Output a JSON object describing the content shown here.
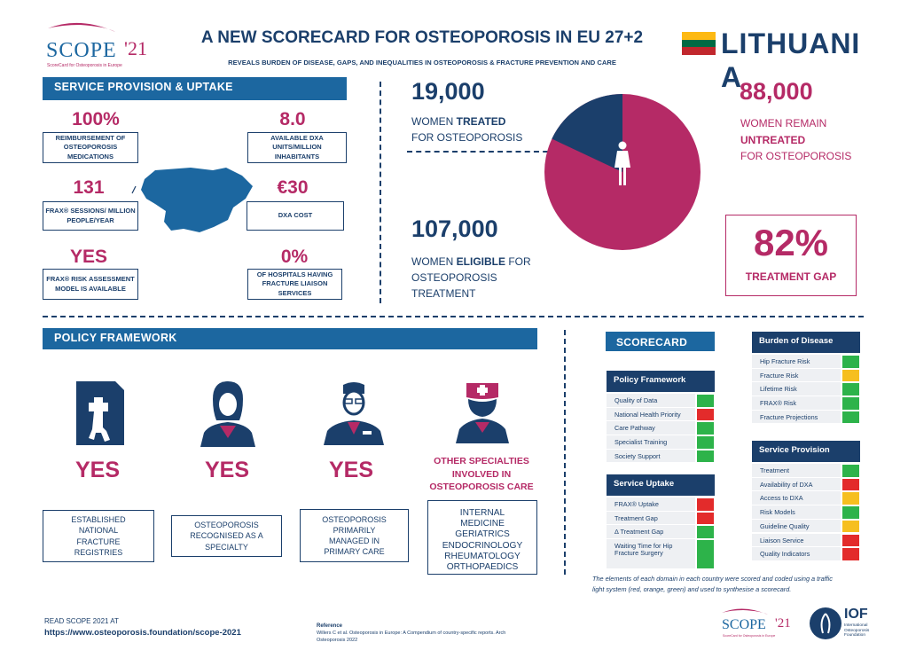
{
  "header": {
    "logo_text": "SCOPE",
    "logo_year": "'21",
    "logo_sub": "ScoreCard for Osteoporosis in Europe",
    "title": "A NEW SCORECARD FOR OSTEOPOROSIS IN EU 27+2",
    "subtitle": "REVEALS BURDEN OF DISEASE, GAPS, AND INEQUALITIES IN OSTEOPOROSIS & FRACTURE PREVENTION AND CARE",
    "country": "LITHUANIA"
  },
  "colors": {
    "navy": "#1b3f6b",
    "magenta": "#b52a66",
    "banner_blue": "#1c67a0",
    "green": "#2db34a",
    "red": "#e32b2b",
    "orange": "#f6bf1f"
  },
  "service": {
    "banner": "SERVICE PROVISION & UPTAKE",
    "items": [
      {
        "value": "100%",
        "label": "REIMBURSEMENT  OF OSTEOPOROSIS MEDICATIONS"
      },
      {
        "value": "8.0",
        "label": "AVAILABLE DXA UNITS/MILLION INHABITANTS"
      },
      {
        "value": "131",
        "label": "FRAX® SESSIONS/ MILLION PEOPLE/YEAR"
      },
      {
        "value": "€30",
        "label": "DXA COST"
      },
      {
        "value": "YES",
        "label": "FRAX® RISK ASSESSMENT MODEL  IS AVAILABLE"
      },
      {
        "value": "0%",
        "label": "OF HOSPITALS HAVING FRACTURE LIAISON SERVICES"
      }
    ]
  },
  "treatment": {
    "treated_value": "19,000",
    "treated_l1_pre": "WOMEN ",
    "treated_l1_bold": "TREATED",
    "treated_l2": "FOR OSTEOPOROSIS",
    "eligible_value": "107,000",
    "eligible_l1_pre": "WOMEN ",
    "eligible_l1_bold": "ELIGIBLE",
    "eligible_l1_post": " FOR",
    "eligible_l2": "OSTEOPOROSIS",
    "eligible_l3": "TREATMENT",
    "untreated_value": "88,000",
    "untreated_l1": "WOMEN REMAIN",
    "untreated_l2": "UNTREATED",
    "untreated_l3": "FOR OSTEOPOROSIS",
    "gap_value": "82%",
    "gap_label": "TREATMENT GAP",
    "pie_treated_fraction": 0.18
  },
  "policy": {
    "banner": "POLICY FRAMEWORK",
    "items": [
      {
        "value": "YES",
        "icon": "xray-bone-icon",
        "label": "ESTABLISHED NATIONAL FRACTURE REGISTRIES"
      },
      {
        "value": "YES",
        "icon": "female-doctor-icon",
        "label": "OSTEOPOROSIS RECOGNISED AS A SPECIALTY"
      },
      {
        "value": "YES",
        "icon": "male-doctor-icon",
        "label": "OSTEOPOROSIS PRIMARILY MANAGED IN PRIMARY CARE"
      }
    ],
    "other_title": "OTHER SPECIALTIES INVOLVED IN OSTEOPOROSIS CARE",
    "other_icon": "nurse-icon",
    "other_list": [
      "INTERNAL",
      "MEDICINE",
      "GERIATRICS",
      "ENDOCRINOLOGY",
      "RHEUMATOLOGY",
      "ORTHOPAEDICS"
    ]
  },
  "scorecard": {
    "title": "SCORECARD",
    "burden": {
      "title": "Burden of Disease",
      "rows": [
        {
          "label": "Hip Fracture Risk",
          "color": "green"
        },
        {
          "label": "Fracture Risk",
          "color": "orange"
        },
        {
          "label": "Lifetime Risk",
          "color": "green"
        },
        {
          "label": "FRAX® Risk",
          "color": "green"
        },
        {
          "label": "Fracture Projections",
          "color": "green"
        }
      ]
    },
    "policy": {
      "title": "Policy Framework",
      "rows": [
        {
          "label": "Quality of Data",
          "color": "green"
        },
        {
          "label": "National Health Priority",
          "color": "red"
        },
        {
          "label": "Care Pathway",
          "color": "green"
        },
        {
          "label": "Specialist Training",
          "color": "green"
        },
        {
          "label": "Society Support",
          "color": "green"
        }
      ]
    },
    "uptake": {
      "title": "Service Uptake",
      "rows": [
        {
          "label": "FRAX® Uptake",
          "color": "red"
        },
        {
          "label": "Treatment Gap",
          "color": "red"
        },
        {
          "label": "Δ Treatment Gap",
          "color": "green"
        },
        {
          "label": "Waiting Time for Hip  Fracture Surgery",
          "color": "green"
        }
      ]
    },
    "provision": {
      "title": "Service Provision",
      "rows": [
        {
          "label": "Treatment",
          "color": "green"
        },
        {
          "label": "Availability of DXA",
          "color": "red"
        },
        {
          "label": "Access to DXA",
          "color": "orange"
        },
        {
          "label": "Risk Models",
          "color": "green"
        },
        {
          "label": "Guideline Quality",
          "color": "orange"
        },
        {
          "label": "Liaison Service",
          "color": "red"
        },
        {
          "label": "Quality Indicators",
          "color": "red"
        }
      ]
    },
    "note": "The elements of each domain in each country were scored and coded using a traffic light system (red, orange, green) and used to synthesise a scorecard."
  },
  "footer": {
    "read_label": "READ SCOPE 2021 AT",
    "url": "https://www.osteoporosis.foundation/scope-2021",
    "ref_title": "Reference",
    "ref_text": "Willers C et al. Osteoporosis in Europe: A Compendium of country-specific reports. Arch Osteoporosis 2022",
    "iof_text": "IOF",
    "iof_sub": "International Osteoporosis Foundation"
  }
}
